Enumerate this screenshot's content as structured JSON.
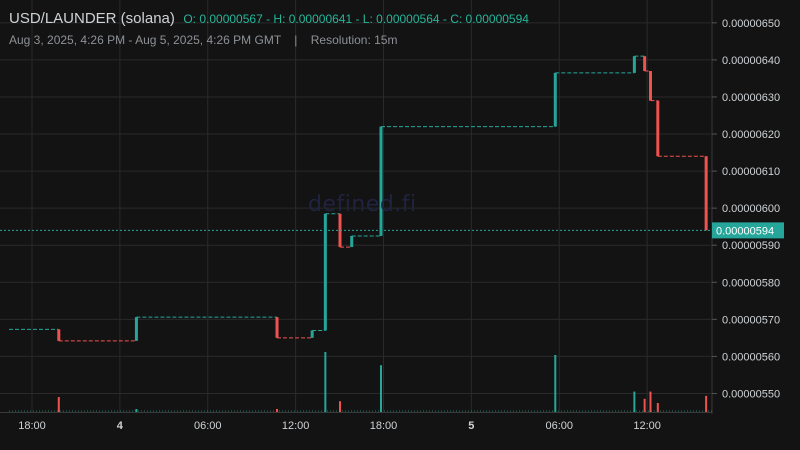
{
  "header": {
    "symbol": "USD/LAUNDER (solana)",
    "ohlc": "O: 0.00000567 - H: 0.00000641 - L: 0.00000564 - C: 0.00000594",
    "range": "Aug 3, 2025, 4:26 PM - Aug 5, 2025, 4:26 PM GMT",
    "separator": "|",
    "resolution": "Resolution: 15m"
  },
  "watermark": "defined.fi",
  "colors": {
    "up": "#26a69a",
    "down": "#ef5350",
    "text": "#cfd3d6",
    "grid": "#2a2a2a",
    "background": "#131313"
  },
  "chart_data": {
    "type": "candlestick",
    "y_tick_labels": [
      "0.00000650",
      "0.00000640",
      "0.00000630",
      "0.00000620",
      "0.00000610",
      "0.00000600",
      "0.00000590",
      "0.00000580",
      "0.00000570",
      "0.00000560",
      "0.00000550"
    ],
    "ylim": [
      5.45e-06,
      6.54e-06
    ],
    "x_tick_labels": [
      {
        "label": "18:00",
        "t": 1.57,
        "bold": false
      },
      {
        "label": "4",
        "t": 7.57,
        "bold": true
      },
      {
        "label": "06:00",
        "t": 13.57,
        "bold": false
      },
      {
        "label": "12:00",
        "t": 19.57,
        "bold": false
      },
      {
        "label": "18:00",
        "t": 25.57,
        "bold": false
      },
      {
        "label": "5",
        "t": 31.57,
        "bold": true
      },
      {
        "label": "06:00",
        "t": 37.57,
        "bold": false
      },
      {
        "label": "12:00",
        "t": 43.57,
        "bold": false
      }
    ],
    "x_range_hours": [
      0,
      48
    ],
    "last_price": "0.00000594",
    "last_value": 5.94e-06,
    "candles": [
      {
        "t": 3.4,
        "o": 5.673e-06,
        "c": 5.642e-06
      },
      {
        "t": 8.7,
        "o": 5.642e-06,
        "c": 5.706e-06
      },
      {
        "t": 18.3,
        "o": 5.706e-06,
        "c": 5.65e-06
      },
      {
        "t": 20.7,
        "o": 5.65e-06,
        "c": 5.67e-06
      },
      {
        "t": 21.6,
        "o": 5.67e-06,
        "c": 5.985e-06
      },
      {
        "t": 22.6,
        "o": 5.985e-06,
        "c": 5.895e-06
      },
      {
        "t": 23.4,
        "o": 5.895e-06,
        "c": 5.925e-06
      },
      {
        "t": 25.4,
        "o": 5.925e-06,
        "c": 6.22e-06
      },
      {
        "t": 37.3,
        "o": 6.22e-06,
        "c": 6.365e-06
      },
      {
        "t": 42.7,
        "o": 6.365e-06,
        "c": 6.41e-06
      },
      {
        "t": 43.4,
        "o": 6.41e-06,
        "c": 6.37e-06
      },
      {
        "t": 43.8,
        "o": 6.37e-06,
        "c": 6.29e-06
      },
      {
        "t": 44.3,
        "o": 6.29e-06,
        "c": 6.14e-06
      },
      {
        "t": 47.6,
        "o": 6.14e-06,
        "c": 5.94e-06
      }
    ],
    "volume": [
      {
        "t": 3.4,
        "v": 0.25,
        "dir": "down"
      },
      {
        "t": 8.7,
        "v": 0.05,
        "dir": "up"
      },
      {
        "t": 18.3,
        "v": 0.05,
        "dir": "down"
      },
      {
        "t": 21.6,
        "v": 1.0,
        "dir": "up"
      },
      {
        "t": 22.6,
        "v": 0.18,
        "dir": "down"
      },
      {
        "t": 25.4,
        "v": 0.78,
        "dir": "up"
      },
      {
        "t": 37.3,
        "v": 0.95,
        "dir": "up"
      },
      {
        "t": 42.7,
        "v": 0.34,
        "dir": "up"
      },
      {
        "t": 43.4,
        "v": 0.22,
        "dir": "down"
      },
      {
        "t": 43.8,
        "v": 0.34,
        "dir": "down"
      },
      {
        "t": 44.3,
        "v": 0.15,
        "dir": "down"
      },
      {
        "t": 47.6,
        "v": 0.27,
        "dir": "down"
      }
    ]
  }
}
